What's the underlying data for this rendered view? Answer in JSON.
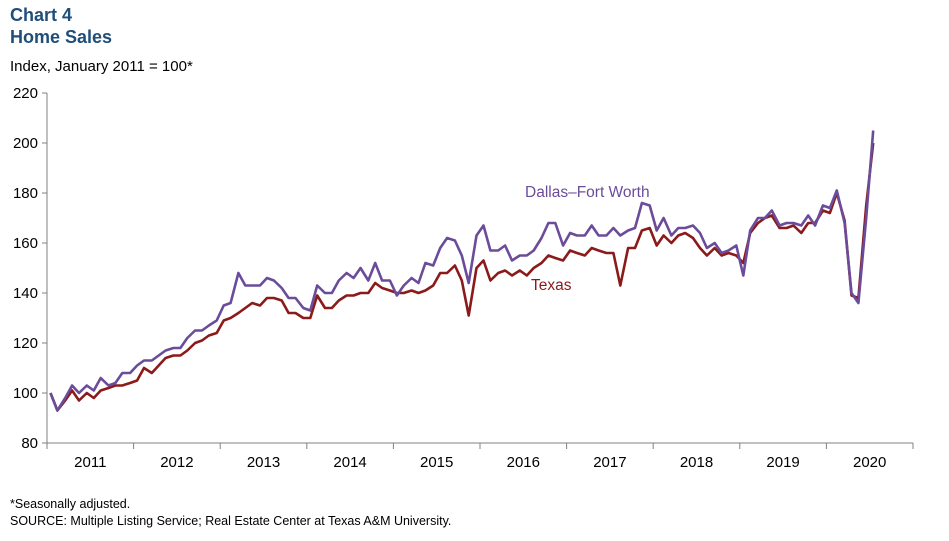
{
  "header": {
    "chart_number": "Chart 4",
    "chart_name": "Home Sales",
    "subtitle": "Index, January 2011 = 100*"
  },
  "footer": {
    "note": "*Seasonally adjusted.",
    "source": "SOURCE: Multiple Listing Service; Real Estate Center at Texas A&M University."
  },
  "colors": {
    "dfw": "#6b4c9a",
    "texas": "#8b1a1a",
    "axis": "#808080",
    "title": "#1f4e79"
  },
  "chart_data": {
    "type": "line",
    "title": "Chart 4 Home Sales",
    "ylabel": "Index, January 2011 = 100*",
    "xlabel": "",
    "ylim": [
      80,
      220
    ],
    "yticks": [
      80,
      100,
      120,
      140,
      160,
      180,
      200,
      220
    ],
    "xlim": [
      2011.0,
      2021.0
    ],
    "x_ticks": [
      "2011",
      "2012",
      "2013",
      "2014",
      "2015",
      "2016",
      "2017",
      "2018",
      "2019",
      "2020"
    ],
    "grid": false,
    "series": [
      {
        "name": "Dallas–Fort Worth",
        "points": [
          [
            2011.04,
            100
          ],
          [
            2011.12,
            93
          ],
          [
            2011.21,
            98
          ],
          [
            2011.29,
            103
          ],
          [
            2011.37,
            100
          ],
          [
            2011.46,
            103
          ],
          [
            2011.54,
            101
          ],
          [
            2011.62,
            106
          ],
          [
            2011.71,
            103
          ],
          [
            2011.79,
            104
          ],
          [
            2011.87,
            108
          ],
          [
            2011.96,
            108
          ],
          [
            2012.04,
            111
          ],
          [
            2012.12,
            113
          ],
          [
            2012.21,
            113
          ],
          [
            2012.29,
            115
          ],
          [
            2012.37,
            117
          ],
          [
            2012.46,
            118
          ],
          [
            2012.54,
            118
          ],
          [
            2012.62,
            122
          ],
          [
            2012.71,
            125
          ],
          [
            2012.79,
            125
          ],
          [
            2012.87,
            127
          ],
          [
            2012.96,
            129
          ],
          [
            2013.04,
            135
          ],
          [
            2013.12,
            136
          ],
          [
            2013.21,
            148
          ],
          [
            2013.29,
            143
          ],
          [
            2013.37,
            143
          ],
          [
            2013.46,
            143
          ],
          [
            2013.54,
            146
          ],
          [
            2013.62,
            145
          ],
          [
            2013.71,
            142
          ],
          [
            2013.79,
            138
          ],
          [
            2013.87,
            138
          ],
          [
            2013.96,
            134
          ],
          [
            2014.04,
            133
          ],
          [
            2014.12,
            143
          ],
          [
            2014.21,
            140
          ],
          [
            2014.29,
            140
          ],
          [
            2014.37,
            145
          ],
          [
            2014.46,
            148
          ],
          [
            2014.54,
            146
          ],
          [
            2014.62,
            150
          ],
          [
            2014.71,
            145
          ],
          [
            2014.79,
            152
          ],
          [
            2014.87,
            145
          ],
          [
            2014.96,
            145
          ],
          [
            2015.04,
            139
          ],
          [
            2015.12,
            143
          ],
          [
            2015.21,
            146
          ],
          [
            2015.29,
            144
          ],
          [
            2015.37,
            152
          ],
          [
            2015.46,
            151
          ],
          [
            2015.54,
            158
          ],
          [
            2015.62,
            162
          ],
          [
            2015.71,
            161
          ],
          [
            2015.79,
            155
          ],
          [
            2015.87,
            144
          ],
          [
            2015.96,
            163
          ],
          [
            2016.04,
            167
          ],
          [
            2016.12,
            157
          ],
          [
            2016.21,
            157
          ],
          [
            2016.29,
            159
          ],
          [
            2016.37,
            153
          ],
          [
            2016.46,
            155
          ],
          [
            2016.54,
            155
          ],
          [
            2016.62,
            157
          ],
          [
            2016.71,
            162
          ],
          [
            2016.79,
            168
          ],
          [
            2016.87,
            168
          ],
          [
            2016.96,
            159
          ],
          [
            2017.04,
            164
          ],
          [
            2017.12,
            163
          ],
          [
            2017.21,
            163
          ],
          [
            2017.29,
            167
          ],
          [
            2017.37,
            163
          ],
          [
            2017.46,
            163
          ],
          [
            2017.54,
            166
          ],
          [
            2017.62,
            163
          ],
          [
            2017.71,
            165
          ],
          [
            2017.79,
            166
          ],
          [
            2017.87,
            176
          ],
          [
            2017.96,
            175
          ],
          [
            2018.04,
            165
          ],
          [
            2018.12,
            170
          ],
          [
            2018.21,
            163
          ],
          [
            2018.29,
            166
          ],
          [
            2018.37,
            166
          ],
          [
            2018.46,
            167
          ],
          [
            2018.54,
            164
          ],
          [
            2018.62,
            158
          ],
          [
            2018.71,
            160
          ],
          [
            2018.79,
            156
          ],
          [
            2018.87,
            157
          ],
          [
            2018.96,
            159
          ],
          [
            2019.04,
            147
          ],
          [
            2019.12,
            165
          ],
          [
            2019.21,
            170
          ],
          [
            2019.29,
            170
          ],
          [
            2019.37,
            173
          ],
          [
            2019.46,
            167
          ],
          [
            2019.54,
            168
          ],
          [
            2019.62,
            168
          ],
          [
            2019.71,
            167
          ],
          [
            2019.79,
            171
          ],
          [
            2019.87,
            167
          ],
          [
            2019.96,
            175
          ],
          [
            2020.04,
            174
          ],
          [
            2020.12,
            181
          ],
          [
            2020.21,
            168
          ],
          [
            2020.29,
            140
          ],
          [
            2020.37,
            136
          ],
          [
            2020.46,
            170
          ],
          [
            2020.54,
            205
          ]
        ]
      },
      {
        "name": "Texas",
        "points": [
          [
            2011.04,
            100
          ],
          [
            2011.12,
            93
          ],
          [
            2011.21,
            97
          ],
          [
            2011.29,
            101
          ],
          [
            2011.37,
            97
          ],
          [
            2011.46,
            100
          ],
          [
            2011.54,
            98
          ],
          [
            2011.62,
            101
          ],
          [
            2011.71,
            102
          ],
          [
            2011.79,
            103
          ],
          [
            2011.87,
            103
          ],
          [
            2011.96,
            104
          ],
          [
            2012.04,
            105
          ],
          [
            2012.12,
            110
          ],
          [
            2012.21,
            108
          ],
          [
            2012.29,
            111
          ],
          [
            2012.37,
            114
          ],
          [
            2012.46,
            115
          ],
          [
            2012.54,
            115
          ],
          [
            2012.62,
            117
          ],
          [
            2012.71,
            120
          ],
          [
            2012.79,
            121
          ],
          [
            2012.87,
            123
          ],
          [
            2012.96,
            124
          ],
          [
            2013.04,
            129
          ],
          [
            2013.12,
            130
          ],
          [
            2013.21,
            132
          ],
          [
            2013.29,
            134
          ],
          [
            2013.37,
            136
          ],
          [
            2013.46,
            135
          ],
          [
            2013.54,
            138
          ],
          [
            2013.62,
            138
          ],
          [
            2013.71,
            137
          ],
          [
            2013.79,
            132
          ],
          [
            2013.87,
            132
          ],
          [
            2013.96,
            130
          ],
          [
            2014.04,
            130
          ],
          [
            2014.12,
            139
          ],
          [
            2014.21,
            134
          ],
          [
            2014.29,
            134
          ],
          [
            2014.37,
            137
          ],
          [
            2014.46,
            139
          ],
          [
            2014.54,
            139
          ],
          [
            2014.62,
            140
          ],
          [
            2014.71,
            140
          ],
          [
            2014.79,
            144
          ],
          [
            2014.87,
            142
          ],
          [
            2014.96,
            141
          ],
          [
            2015.04,
            140
          ],
          [
            2015.12,
            140
          ],
          [
            2015.21,
            141
          ],
          [
            2015.29,
            140
          ],
          [
            2015.37,
            141
          ],
          [
            2015.46,
            143
          ],
          [
            2015.54,
            148
          ],
          [
            2015.62,
            148
          ],
          [
            2015.71,
            151
          ],
          [
            2015.79,
            145
          ],
          [
            2015.87,
            131
          ],
          [
            2015.96,
            150
          ],
          [
            2016.04,
            153
          ],
          [
            2016.12,
            145
          ],
          [
            2016.21,
            148
          ],
          [
            2016.29,
            149
          ],
          [
            2016.37,
            147
          ],
          [
            2016.46,
            149
          ],
          [
            2016.54,
            147
          ],
          [
            2016.62,
            150
          ],
          [
            2016.71,
            152
          ],
          [
            2016.79,
            155
          ],
          [
            2016.87,
            154
          ],
          [
            2016.96,
            153
          ],
          [
            2017.04,
            157
          ],
          [
            2017.12,
            156
          ],
          [
            2017.21,
            155
          ],
          [
            2017.29,
            158
          ],
          [
            2017.37,
            157
          ],
          [
            2017.46,
            156
          ],
          [
            2017.54,
            156
          ],
          [
            2017.62,
            143
          ],
          [
            2017.71,
            158
          ],
          [
            2017.79,
            158
          ],
          [
            2017.87,
            165
          ],
          [
            2017.96,
            166
          ],
          [
            2018.04,
            159
          ],
          [
            2018.12,
            163
          ],
          [
            2018.21,
            160
          ],
          [
            2018.29,
            163
          ],
          [
            2018.37,
            164
          ],
          [
            2018.46,
            162
          ],
          [
            2018.54,
            158
          ],
          [
            2018.62,
            155
          ],
          [
            2018.71,
            158
          ],
          [
            2018.79,
            155
          ],
          [
            2018.87,
            156
          ],
          [
            2018.96,
            155
          ],
          [
            2019.04,
            152
          ],
          [
            2019.12,
            164
          ],
          [
            2019.21,
            168
          ],
          [
            2019.29,
            170
          ],
          [
            2019.37,
            171
          ],
          [
            2019.46,
            166
          ],
          [
            2019.54,
            166
          ],
          [
            2019.62,
            167
          ],
          [
            2019.71,
            164
          ],
          [
            2019.79,
            168
          ],
          [
            2019.87,
            168
          ],
          [
            2019.96,
            173
          ],
          [
            2020.04,
            172
          ],
          [
            2020.12,
            180
          ],
          [
            2020.21,
            169
          ],
          [
            2020.29,
            139
          ],
          [
            2020.37,
            138
          ],
          [
            2020.46,
            175
          ],
          [
            2020.54,
            200
          ]
        ]
      }
    ]
  }
}
